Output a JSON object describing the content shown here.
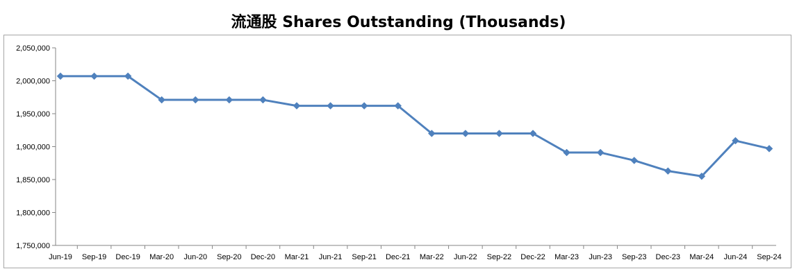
{
  "chart_data": {
    "type": "line",
    "title": "流通股 Shares Outstanding (Thousands)",
    "xlabel": "",
    "ylabel": "",
    "ylim": [
      1750000,
      2050000
    ],
    "yticks": [
      1750000,
      1800000,
      1850000,
      1900000,
      1950000,
      2000000,
      2050000
    ],
    "ytick_labels": [
      "1,750,000",
      "1,800,000",
      "1,850,000",
      "1,900,000",
      "1,950,000",
      "2,000,000",
      "2,050,000"
    ],
    "grid": false,
    "legend": "none",
    "categories": [
      "Jun-19",
      "Sep-19",
      "Dec-19",
      "Mar-20",
      "Jun-20",
      "Sep-20",
      "Dec-20",
      "Mar-21",
      "Jun-21",
      "Sep-21",
      "Dec-21",
      "Mar-22",
      "Jun-22",
      "Sep-22",
      "Dec-22",
      "Mar-23",
      "Jun-23",
      "Sep-23",
      "Dec-23",
      "Mar-24",
      "Jun-24",
      "Sep-24"
    ],
    "series": [
      {
        "color": "#4f81bd",
        "values": [
          2007000,
          2007000,
          2007000,
          1971000,
          1971000,
          1971000,
          1971000,
          1962000,
          1962000,
          1962000,
          1962000,
          1920000,
          1920000,
          1920000,
          1920000,
          1891000,
          1891000,
          1879000,
          1863000,
          1855000,
          1909000,
          1897000
        ]
      }
    ]
  }
}
